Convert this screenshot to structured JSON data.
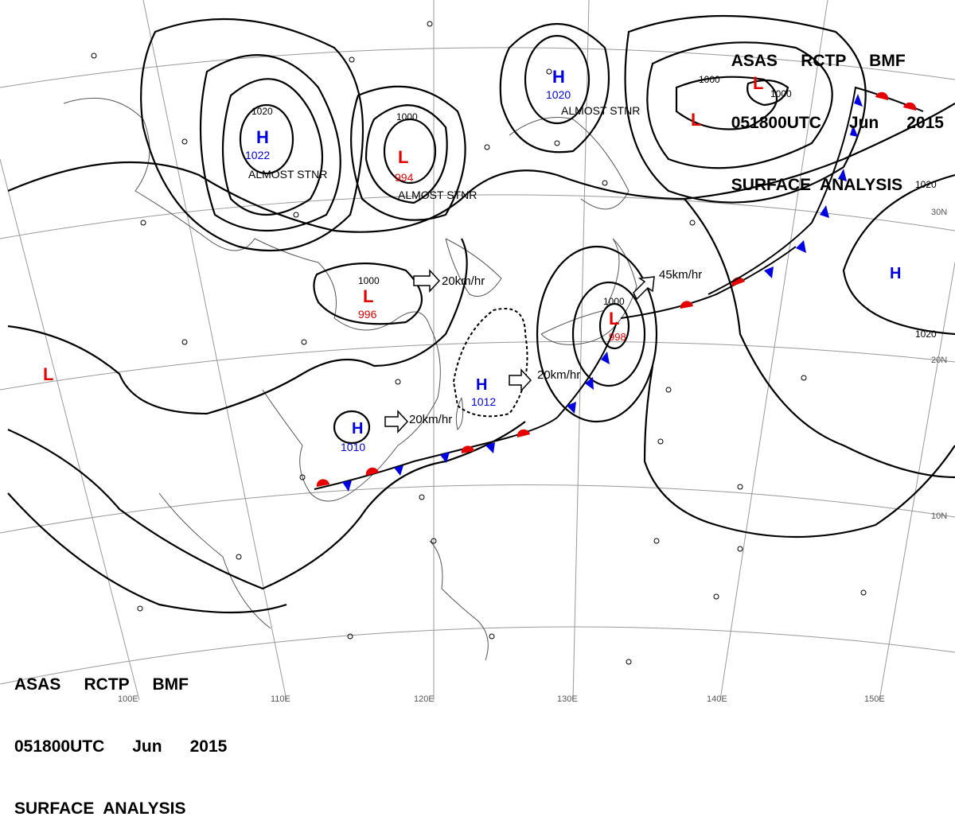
{
  "header": {
    "line1": "ASAS     RCTP     BMF",
    "line2": "051800UTC      Jun      2015",
    "line3": "SURFACE  ANALYSIS"
  },
  "colors": {
    "isobar": "#000000",
    "high": "#0000e6",
    "low": "#e60000",
    "warm_front": "#e60000",
    "cold_front": "#0000e6",
    "grid": "#999999",
    "coast": "#555555"
  },
  "lat_labels": [
    "30N",
    "20N",
    "10N"
  ],
  "lon_labels": [
    "100E",
    "110E",
    "120E",
    "130E",
    "140E",
    "150E"
  ],
  "highs": [
    {
      "label": "H",
      "value": "1022",
      "note": "ALMOST STNR"
    },
    {
      "label": "H",
      "value": "1020",
      "note": "ALMOST STNR"
    },
    {
      "label": "H",
      "value": "1012"
    },
    {
      "label": "H",
      "value": "1010"
    },
    {
      "label": "H"
    }
  ],
  "lows": [
    {
      "label": "L",
      "value": "994",
      "note": "ALMOST STNR"
    },
    {
      "label": "L",
      "value": "996"
    },
    {
      "label": "L",
      "value": "998"
    },
    {
      "label": "L"
    },
    {
      "label": "L"
    },
    {
      "label": "L"
    }
  ],
  "isobar_labels": [
    "1020",
    "1000",
    "1000",
    "1000",
    "1000",
    "1000",
    "1020",
    "1020"
  ],
  "motions": [
    "20km/hr",
    "20km/hr",
    "20km/hr",
    "45km/hr"
  ]
}
